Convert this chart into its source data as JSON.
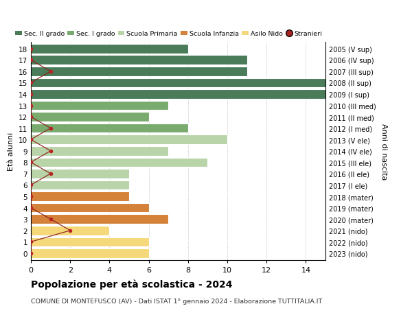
{
  "ages": [
    18,
    17,
    16,
    15,
    14,
    13,
    12,
    11,
    10,
    9,
    8,
    7,
    6,
    5,
    4,
    3,
    2,
    1,
    0
  ],
  "right_labels": [
    "2005 (V sup)",
    "2006 (IV sup)",
    "2007 (III sup)",
    "2008 (II sup)",
    "2009 (I sup)",
    "2010 (III med)",
    "2011 (II med)",
    "2012 (I med)",
    "2013 (V ele)",
    "2014 (IV ele)",
    "2015 (III ele)",
    "2016 (II ele)",
    "2017 (I ele)",
    "2018 (mater)",
    "2019 (mater)",
    "2020 (mater)",
    "2021 (nido)",
    "2022 (nido)",
    "2023 (nido)"
  ],
  "bar_values": [
    8,
    11,
    11,
    15,
    15,
    7,
    6,
    8,
    10,
    7,
    9,
    5,
    5,
    5,
    6,
    7,
    4,
    6,
    6
  ],
  "bar_colors": [
    "#4a7c59",
    "#4a7c59",
    "#4a7c59",
    "#4a7c59",
    "#4a7c59",
    "#7aab6e",
    "#7aab6e",
    "#7aab6e",
    "#b8d4a8",
    "#b8d4a8",
    "#b8d4a8",
    "#b8d4a8",
    "#b8d4a8",
    "#d4813a",
    "#d4813a",
    "#d4813a",
    "#f5d87a",
    "#f5d87a",
    "#f5d87a"
  ],
  "stranieri_values": [
    0,
    0,
    1,
    0,
    0,
    0,
    0,
    1,
    0,
    1,
    0,
    1,
    0,
    0,
    0,
    1,
    2,
    0,
    0
  ],
  "legend_labels": [
    "Sec. II grado",
    "Sec. I grado",
    "Scuola Primaria",
    "Scuola Infanzia",
    "Asilo Nido",
    "Stranieri"
  ],
  "legend_colors": [
    "#4a7c59",
    "#7aab6e",
    "#b8d4a8",
    "#d4813a",
    "#f5d87a",
    "#aa2222"
  ],
  "title": "Popolazione per età scolastica - 2024",
  "subtitle": "COMUNE DI MONTEFUSCO (AV) - Dati ISTAT 1° gennaio 2024 - Elaborazione TUTTITALIA.IT",
  "ylabel_left": "Età alunni",
  "ylabel_right": "Anni di nascita",
  "xlim": [
    0,
    15
  ],
  "bg_color": "#ffffff"
}
